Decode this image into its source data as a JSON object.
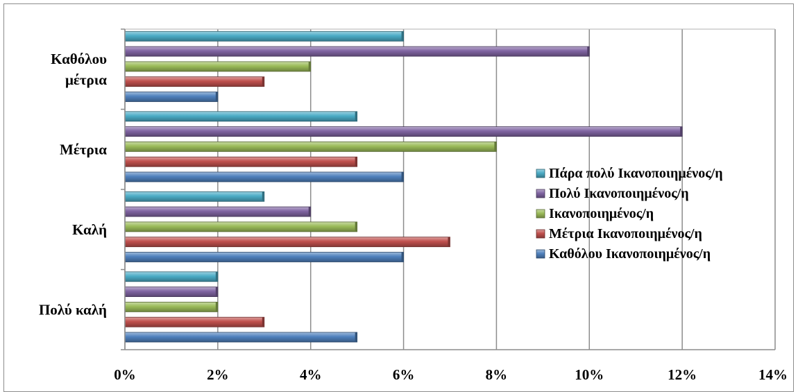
{
  "chart_data": {
    "type": "bar",
    "orientation": "horizontal",
    "categories": [
      "Πολύ καλή",
      "Καλή",
      "Μέτρια",
      "Καθόλου μέτρια"
    ],
    "category_lines": [
      [
        "Πολύ καλή"
      ],
      [
        "Καλή"
      ],
      [
        "Μέτρια"
      ],
      [
        "Καθόλου",
        "μέτρια"
      ]
    ],
    "series": [
      {
        "name": "Καθόλου Ικανοποιημένος/η",
        "color": "#4f81bd",
        "values": [
          5,
          6,
          6,
          2
        ]
      },
      {
        "name": "Μέτρια Ικανοποιημένος/η",
        "color": "#c0504d",
        "values": [
          3,
          7,
          5,
          3
        ]
      },
      {
        "name": "Ικανοποιημένος/η",
        "color": "#9bbb59",
        "values": [
          2,
          5,
          8,
          4
        ]
      },
      {
        "name": "Πολύ Ικανοποιημένος/η",
        "color": "#8064a2",
        "values": [
          2,
          4,
          12,
          10
        ]
      },
      {
        "name": "Πάρα πολύ Ικανοποιημένος/η",
        "color": "#4bacc6",
        "values": [
          2,
          3,
          5,
          6
        ]
      }
    ],
    "x_ticks": [
      "0%",
      "2%",
      "4%",
      "6%",
      "8%",
      "10%",
      "12%",
      "14%"
    ],
    "xlim": [
      0,
      14
    ],
    "unit": "%",
    "grid": true,
    "legend_position": "right",
    "title": "",
    "xlabel": "",
    "ylabel": ""
  }
}
